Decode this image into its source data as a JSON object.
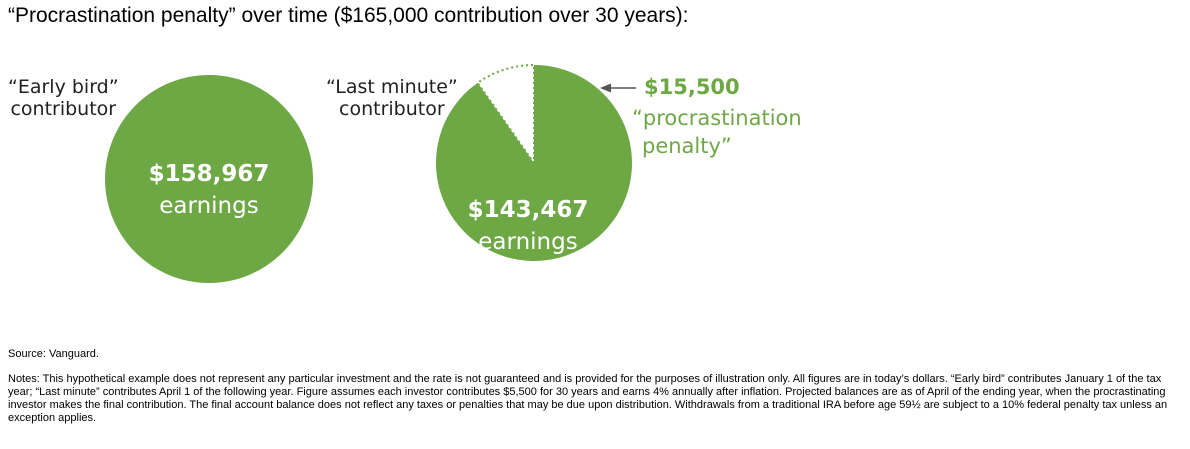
{
  "title": "“Procrastination penalty” over time ($165,000 contribution over 30 years):",
  "colors": {
    "green": "#6ea845",
    "text": "#231f20"
  },
  "chart_data": [
    {
      "type": "pie",
      "label_lines": [
        "“Early bird”",
        "contributor"
      ],
      "slices": [
        {
          "value": 158967,
          "value_label": "$158,967",
          "text": "earnings",
          "style": "filled"
        }
      ]
    },
    {
      "type": "pie",
      "label_lines": [
        "“Last minute”",
        "contributor"
      ],
      "slices": [
        {
          "value": 143467,
          "value_label": "$143,467",
          "text": "earnings",
          "style": "filled"
        },
        {
          "value": 15500,
          "value_label": "$15,500",
          "text_lines": [
            "“procrastination",
            "penalty”"
          ],
          "style": "dotted-outline"
        }
      ]
    }
  ],
  "source": "Source: Vanguard.",
  "notes": "Notes: This hypothetical example does not represent any particular investment and the rate is not guaranteed and is provided for the purposes of illustration only. All figures are in today’s dollars. “Early bird” contributes January 1 of the tax year; “Last minute” contributes April 1 of the following year. Figure assumes each investor contributes $5,500 for 30 years and earns 4% annually after inflation. Projected balances are as of April of the ending year, when the procrastinating investor makes the final contribution. The final account balance does not reflect any taxes or penalties that may be due upon distribution. Withdrawals from a traditional IRA before age 59½ are subject to a 10% federal penalty tax unless an exception applies."
}
